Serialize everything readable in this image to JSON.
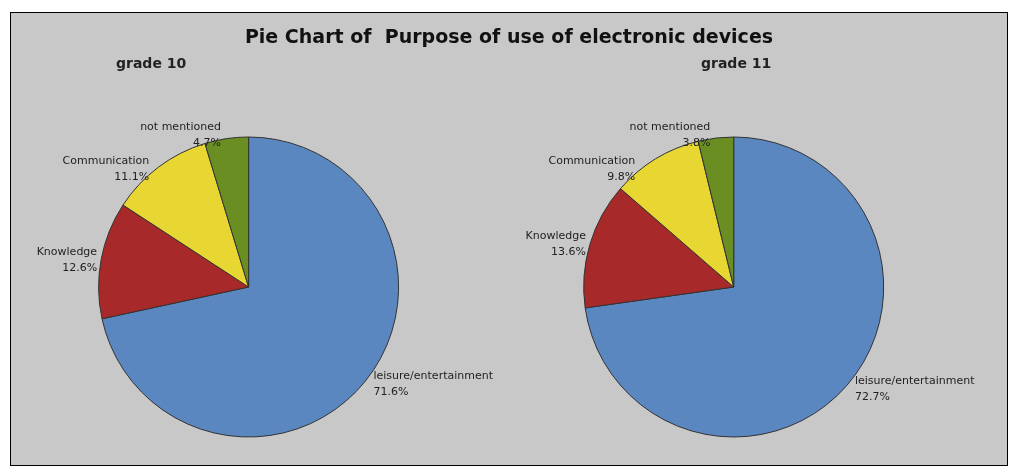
{
  "chart_data": [
    {
      "type": "pie",
      "title": "Pie Chart of  Purpose of use of electronic devices",
      "subtitle": "grade 10",
      "categories": [
        "leisure/entertainment",
        "Knowledge",
        "Communication",
        "not mentioned"
      ],
      "values": [
        71.6,
        12.6,
        11.1,
        4.7
      ],
      "value_labels": [
        "71.6%",
        "12.6%",
        "11.1%",
        "4.7%"
      ],
      "colors": [
        "#5b87c0",
        "#a8292a",
        "#e8d733",
        "#6b8e23"
      ]
    },
    {
      "type": "pie",
      "subtitle": "grade 11",
      "categories": [
        "leisure/entertainment",
        "Knowledge",
        "Communication",
        "not mentioned"
      ],
      "values": [
        72.7,
        13.6,
        9.8,
        3.8
      ],
      "value_labels": [
        "72.7%",
        "13.6%",
        "9.8%",
        "3.8%"
      ],
      "colors": [
        "#5b87c0",
        "#a8292a",
        "#e8d733",
        "#6b8e23"
      ]
    }
  ]
}
